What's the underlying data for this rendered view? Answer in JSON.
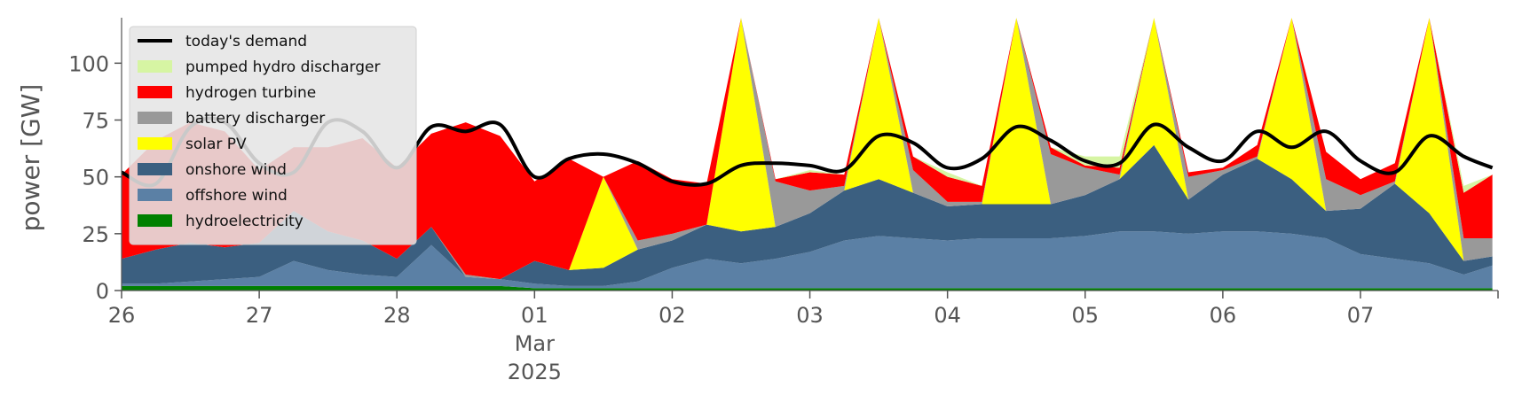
{
  "chart_data": {
    "type": "area",
    "ylabel": "power [GW]",
    "ylim": [
      0,
      120
    ],
    "yticks": [
      0,
      25,
      50,
      75,
      100
    ],
    "xlim": [
      "2025-02-26T00:00",
      "2025-03-07T23:59"
    ],
    "xticks": [
      {
        "date": "2025-02-26",
        "label": "26"
      },
      {
        "date": "2025-02-27",
        "label": "27"
      },
      {
        "date": "2025-02-28",
        "label": "28"
      },
      {
        "date": "2025-03-01",
        "label": "01"
      },
      {
        "date": "2025-03-02",
        "label": "02"
      },
      {
        "date": "2025-03-03",
        "label": "03"
      },
      {
        "date": "2025-03-04",
        "label": "04"
      },
      {
        "date": "2025-03-05",
        "label": "05"
      },
      {
        "date": "2025-03-06",
        "label": "06"
      },
      {
        "date": "2025-03-07",
        "label": "07"
      }
    ],
    "month_label": "Mar",
    "year_label": "2025",
    "grid": false,
    "legend_position": "top-left",
    "x": [
      "2025-02-26T00:00",
      "2025-02-26T06:00",
      "2025-02-26T12:00",
      "2025-02-26T18:00",
      "2025-02-27T00:00",
      "2025-02-27T06:00",
      "2025-02-27T12:00",
      "2025-02-27T18:00",
      "2025-02-28T00:00",
      "2025-02-28T06:00",
      "2025-02-28T12:00",
      "2025-02-28T18:00",
      "2025-03-01T00:00",
      "2025-03-01T06:00",
      "2025-03-01T12:00",
      "2025-03-01T18:00",
      "2025-03-02T00:00",
      "2025-03-02T06:00",
      "2025-03-02T12:00",
      "2025-03-02T18:00",
      "2025-03-03T00:00",
      "2025-03-03T06:00",
      "2025-03-03T12:00",
      "2025-03-03T18:00",
      "2025-03-04T00:00",
      "2025-03-04T06:00",
      "2025-03-04T12:00",
      "2025-03-04T18:00",
      "2025-03-05T00:00",
      "2025-03-05T06:00",
      "2025-03-05T12:00",
      "2025-03-05T18:00",
      "2025-03-06T00:00",
      "2025-03-06T06:00",
      "2025-03-06T12:00",
      "2025-03-06T18:00",
      "2025-03-07T00:00",
      "2025-03-07T06:00",
      "2025-03-07T12:00",
      "2025-03-07T18:00",
      "2025-03-07T23:00"
    ],
    "series": [
      {
        "name": "hydroelectricity",
        "color": "#008000",
        "values": [
          2,
          2,
          2,
          2,
          2,
          2,
          2,
          2,
          2,
          2,
          2,
          2,
          1,
          1,
          1,
          1,
          1,
          1,
          1,
          1,
          1,
          1,
          1,
          1,
          1,
          1,
          1,
          1,
          1,
          1,
          1,
          1,
          1,
          1,
          1,
          1,
          1,
          1,
          1,
          1,
          1
        ]
      },
      {
        "name": "offshore wind",
        "color": "#5b80a5",
        "values": [
          1,
          1,
          2,
          3,
          4,
          11,
          7,
          5,
          4,
          18,
          4,
          3,
          2,
          1,
          1,
          3,
          9,
          13,
          11,
          13,
          16,
          21,
          23,
          22,
          21,
          22,
          22,
          22,
          23,
          25,
          25,
          24,
          25,
          25,
          24,
          22,
          15,
          13,
          11,
          6,
          10
        ]
      },
      {
        "name": "onshore wind",
        "color": "#3b5f80",
        "values": [
          11,
          15,
          17,
          14,
          15,
          22,
          17,
          15,
          8,
          8,
          0,
          0,
          10,
          7,
          8,
          14,
          12,
          15,
          14,
          14,
          17,
          22,
          25,
          20,
          15,
          15,
          15,
          15,
          18,
          23,
          38,
          15,
          25,
          32,
          24,
          12,
          20,
          33,
          22,
          6,
          4
        ]
      },
      {
        "name": "solar PV",
        "color": "#ffff00",
        "values": [
          0,
          0,
          0,
          0,
          0,
          0,
          0,
          0,
          0,
          0,
          0,
          0,
          0,
          0,
          40,
          0,
          0,
          0,
          120,
          0,
          0,
          0,
          120,
          0,
          0,
          0,
          120,
          0,
          0,
          0,
          120,
          0,
          0,
          0,
          120,
          0,
          0,
          0,
          120,
          0,
          0
        ]
      },
      {
        "name": "battery discharger",
        "color": "#999999",
        "values": [
          0,
          0,
          0,
          0,
          0,
          0,
          0,
          0,
          0,
          0,
          1,
          0,
          0,
          0,
          0,
          4,
          3,
          0,
          0,
          20,
          10,
          2,
          0,
          10,
          2,
          1,
          0,
          22,
          12,
          2,
          0,
          10,
          2,
          1,
          0,
          14,
          6,
          1,
          0,
          10,
          8
        ]
      },
      {
        "name": "hydrogen turbine",
        "color": "#ff0000",
        "values": [
          37,
          48,
          53,
          51,
          32,
          28,
          37,
          45,
          40,
          41,
          67,
          63,
          35,
          49,
          0,
          35,
          24,
          18,
          0,
          1,
          8,
          5,
          0,
          6,
          11,
          7,
          0,
          3,
          1,
          3,
          0,
          2,
          1,
          5,
          0,
          12,
          7,
          8,
          0,
          20,
          28
        ]
      },
      {
        "name": "pumped hydro discharger",
        "color": "#d6f5a3",
        "values": [
          0,
          0,
          0,
          0,
          0,
          0,
          0,
          0,
          0,
          0,
          0,
          0,
          0,
          0,
          0,
          0,
          0,
          0,
          0,
          0,
          1,
          0,
          0,
          0,
          2,
          0,
          0,
          0,
          4,
          5,
          4,
          0,
          0,
          0,
          0,
          0,
          0,
          0,
          0,
          3,
          0
        ]
      }
    ],
    "demand": {
      "name": "today's demand",
      "color": "#000000",
      "values": [
        52,
        47,
        72,
        74,
        56,
        52,
        74,
        70,
        54,
        72,
        70,
        73,
        50,
        58,
        60,
        56,
        48,
        47,
        55,
        56,
        55,
        53,
        68,
        65,
        54,
        58,
        72,
        66,
        57,
        56,
        73,
        63,
        57,
        70,
        63,
        70,
        57,
        52,
        68,
        59,
        54
      ]
    }
  }
}
